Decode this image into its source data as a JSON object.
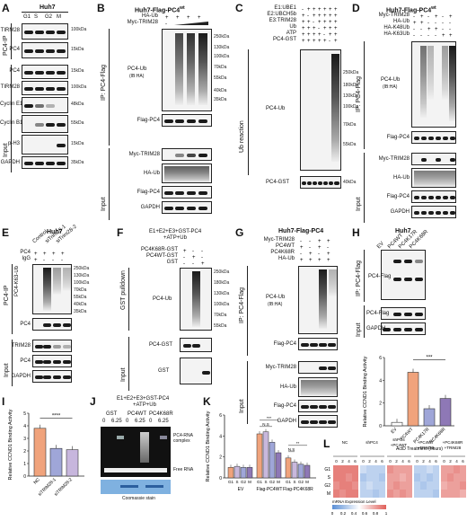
{
  "panels": {
    "A": {
      "letter": "A",
      "cell": "Huh7",
      "lanes": [
        "G1",
        "S",
        "G2",
        "M"
      ],
      "ip": "PC4-IP",
      "input": "Input",
      "rows": [
        "TIRM28",
        "PC4",
        "PC4",
        "TIRM28",
        "Cyclin E1",
        "Cyclin B1",
        "p-H3",
        "GAPDH"
      ],
      "mw": [
        "100kDa",
        "15kDa",
        "15kDa",
        "100kDa",
        "48kDa",
        "55kDa",
        "15kDa",
        "35kDa"
      ]
    },
    "B": {
      "letter": "B",
      "title": "Huh7-Flag-PC4",
      "title_sup": "wt",
      "lanes_rows": [
        "HA-Ub",
        "Myc-TRIM28"
      ],
      "ip": "IP: PC4-Flag",
      "input": "Input",
      "ub_label": "PC4-Ub",
      "ub_sub": "(IB:HA)",
      "rows": [
        "Flag-PC4",
        "Myc-TRIM28",
        "HA-Ub",
        "Flag-PC4",
        "GAPDH"
      ],
      "mw_ub": [
        "250kDa",
        "130kDa",
        "100kDa",
        "70kDa",
        "55kDa",
        "40kDa",
        "35kDa"
      ]
    },
    "C": {
      "letter": "C",
      "rows_top": [
        "E1:UBE1",
        "E2:UBCH5b",
        "E3:TRIM28",
        "Ub",
        "ATP",
        "PC4-GST"
      ],
      "side": "Ub reaction",
      "ub_label": "PC4-Ub",
      "bottom": "PC4-GST",
      "mw_ub": [
        "250kDa",
        "180kDa",
        "130kDa",
        "100kDa",
        "70kDa",
        "55kDa"
      ],
      "mw_bottom": "40kDa"
    },
    "D": {
      "letter": "D",
      "title": "Huh7-Flag-PC4",
      "title_sup": "wt",
      "rows_top": [
        "Myc-TRIM28",
        "HA-Ub",
        "HA-K48Ub",
        "HA-K63Ub"
      ],
      "ip": "IP: PC4-Flag",
      "input": "Input",
      "ub_label": "PC4-Ub",
      "ub_sub": "(IB:HA)",
      "rows": [
        "Flag-PC4",
        "Myc-TRIM28",
        "HA-Ub",
        "Flag-PC4",
        "GAPDH"
      ]
    },
    "E": {
      "letter": "E",
      "cell": "Huh7",
      "lanes": [
        "Control",
        "siTrim28-1",
        "siTrim28-2"
      ],
      "rows_top": [
        "PC4",
        "IgG"
      ],
      "ip": "PC4-IP",
      "input": "Input",
      "ub_label": "PC4-K63-Ub",
      "rows": [
        "PC4",
        "TRIM28",
        "PC4",
        "GAPDH"
      ],
      "mw_ub": [
        "250kDa",
        "130kDa",
        "100kDa",
        "70kDa",
        "55kDa",
        "40kDa",
        "35kDa"
      ]
    },
    "F": {
      "letter": "F",
      "title": "E1+E2+E3+GST-PC4",
      "title2": "+ATP+Ub",
      "rows_top": [
        "PC4K68R-GST",
        "PC4WT-GST",
        "GST"
      ],
      "side": "GST pulldown",
      "input": "Input",
      "ub_label": "PC4-Ub",
      "rows": [
        "PC4-GST",
        "GST"
      ],
      "mw_ub": [
        "250kDa",
        "180kDa",
        "130kDa",
        "100kDa",
        "70kDa",
        "55kDa"
      ]
    },
    "G": {
      "letter": "G",
      "title": "Huh7-Flag-PC4",
      "rows_top": [
        "Myc-TRIM28",
        "PC4WT",
        "PC4K68R",
        "HA-Ub"
      ],
      "ip": "IP: PC4-Flag",
      "input": "Input",
      "ub_label": "PC4-Ub",
      "ub_sub": "(IB:HA)",
      "rows": [
        "Flag-PC4",
        "Myc-TRIM28",
        "HA-Ub",
        "Flag-PC4",
        "GAPDH"
      ]
    },
    "H": {
      "letter": "H",
      "cell": "Huh7",
      "lanes": [
        "EV",
        "PC4WT",
        "PC4K17R",
        "PC4K68R"
      ],
      "ip": "IP: PC4-Flag",
      "input": "Input",
      "rows": [
        "PC4-Flag",
        "PC4-Flag",
        "GAPDH"
      ]
    },
    "I": {
      "letter": "I",
      "ylabel": "Relative CCND1 Binding Activity"
    },
    "J": {
      "letter": "J",
      "title": "E1+E2+E3+GST-PC4",
      "title2": "+ATP+Ub",
      "lanes": [
        "GST",
        "PC4WT",
        "PC4K68R"
      ],
      "conc": [
        "0",
        "6.25",
        "0",
        "6.25",
        "0",
        "6.25"
      ],
      "right": [
        "PC4-RNA complex",
        "Free RNA"
      ],
      "bottom": "Coomassie stain"
    },
    "K": {
      "letter": "K",
      "ylabel": "Relative CCND1 Binding Activity"
    },
    "L": {
      "letter": "L",
      "groups": [
        "NC",
        "shPC4",
        "shPC4 +PC4WT",
        "shPC4 +PC4WT +TRIM28",
        "shPC4 +PC4K68R +TRIM28"
      ],
      "times": [
        "0",
        "2",
        "4",
        "6"
      ],
      "rows": [
        "G1",
        "S",
        "G2",
        "M"
      ],
      "xlabel": "ActD Treatment (hours)",
      "legend": "mRNA Expression Level",
      "legend_ticks": [
        "0",
        "0.2",
        "0.4",
        "0.6",
        "0.8",
        "1"
      ]
    }
  },
  "chart_data": [
    {
      "type": "bar",
      "title": "",
      "ylabel": "Relative CCND1 Binding Activity",
      "categories": [
        "EV",
        "PC4WT",
        "PC4K17R",
        "PC4K68R"
      ],
      "values": [
        0.3,
        4.7,
        1.5,
        2.4
      ],
      "ylim": [
        0,
        6
      ],
      "yticks": [
        0,
        2,
        4,
        6
      ],
      "sig": "***",
      "colors": [
        "#ffffff",
        "#f0a37c",
        "#9fa6d8",
        "#8e78b6"
      ]
    },
    {
      "type": "bar",
      "title": "",
      "ylabel": "Relative CCND1 Binding Activity",
      "categories": [
        "NC",
        "siTRIM28-1",
        "siTRIM28-2"
      ],
      "values": [
        3.8,
        2.2,
        2.1
      ],
      "ylim": [
        0,
        5
      ],
      "yticks": [
        0,
        1,
        2,
        3,
        4,
        5
      ],
      "sig": "****",
      "colors": [
        "#f0a37c",
        "#9fa6d8",
        "#c7b6dd"
      ]
    },
    {
      "type": "bar",
      "title": "",
      "ylabel": "Relative CCND1 Binding Activity",
      "groups": [
        "EV",
        "Flag-PC4WT",
        "Flag-PC4K68R"
      ],
      "categories": [
        "G1",
        "S",
        "G2",
        "M"
      ],
      "series": [
        {
          "values": [
            1.0,
            1.1,
            1.0,
            1.0
          ]
        },
        {
          "values": [
            4.2,
            4.4,
            3.4,
            2.4
          ]
        },
        {
          "values": [
            1.9,
            1.5,
            1.3,
            1.2
          ]
        }
      ],
      "ylim": [
        0,
        6
      ],
      "yticks": [
        0,
        2,
        4,
        6
      ],
      "sig": [
        "N.S",
        "***",
        "N.S",
        "**"
      ],
      "colors": [
        "#f0a37c",
        "#c8b8dc",
        "#9fa6d8",
        "#8e78b6"
      ]
    },
    {
      "type": "heatmap",
      "rows": [
        "G1",
        "S",
        "G2",
        "M"
      ],
      "columns_per_group": [
        "0",
        "2",
        "4",
        "6"
      ],
      "groups": [
        "NC",
        "shPC4",
        "shPC4 +PC4WT",
        "shPC4 +PC4WT +TRIM28",
        "shPC4 +PC4K68R +TRIM28"
      ],
      "values": [
        [
          [
            0.9,
            0.9,
            0.9,
            0.9
          ],
          [
            0.35,
            0.3,
            0.3,
            0.3
          ],
          [
            0.85,
            0.8,
            0.8,
            0.8
          ],
          [
            0.3,
            0.3,
            0.35,
            0.3
          ],
          [
            0.8,
            0.8,
            0.85,
            0.8
          ]
        ],
        [
          [
            0.9,
            0.9,
            0.85,
            0.9
          ],
          [
            0.25,
            0.3,
            0.3,
            0.25
          ],
          [
            0.8,
            0.8,
            0.75,
            0.8
          ],
          [
            0.25,
            0.3,
            0.25,
            0.3
          ],
          [
            0.8,
            0.85,
            0.8,
            0.8
          ]
        ],
        [
          [
            0.85,
            0.9,
            0.9,
            0.85
          ],
          [
            0.3,
            0.35,
            0.3,
            0.3
          ],
          [
            0.8,
            0.85,
            0.8,
            0.8
          ],
          [
            0.3,
            0.25,
            0.3,
            0.3
          ],
          [
            0.75,
            0.8,
            0.8,
            0.85
          ]
        ],
        [
          [
            0.9,
            0.85,
            0.9,
            0.9
          ],
          [
            0.3,
            0.3,
            0.25,
            0.3
          ],
          [
            0.85,
            0.8,
            0.85,
            0.8
          ],
          [
            0.3,
            0.3,
            0.3,
            0.25
          ],
          [
            0.8,
            0.8,
            0.8,
            0.75
          ]
        ]
      ],
      "xlabel": "ActD Treatment (hours)",
      "legend": "mRNA Expression Level",
      "colorscale": [
        "#5a8fd6",
        "#ffffff",
        "#e0605a"
      ]
    }
  ]
}
